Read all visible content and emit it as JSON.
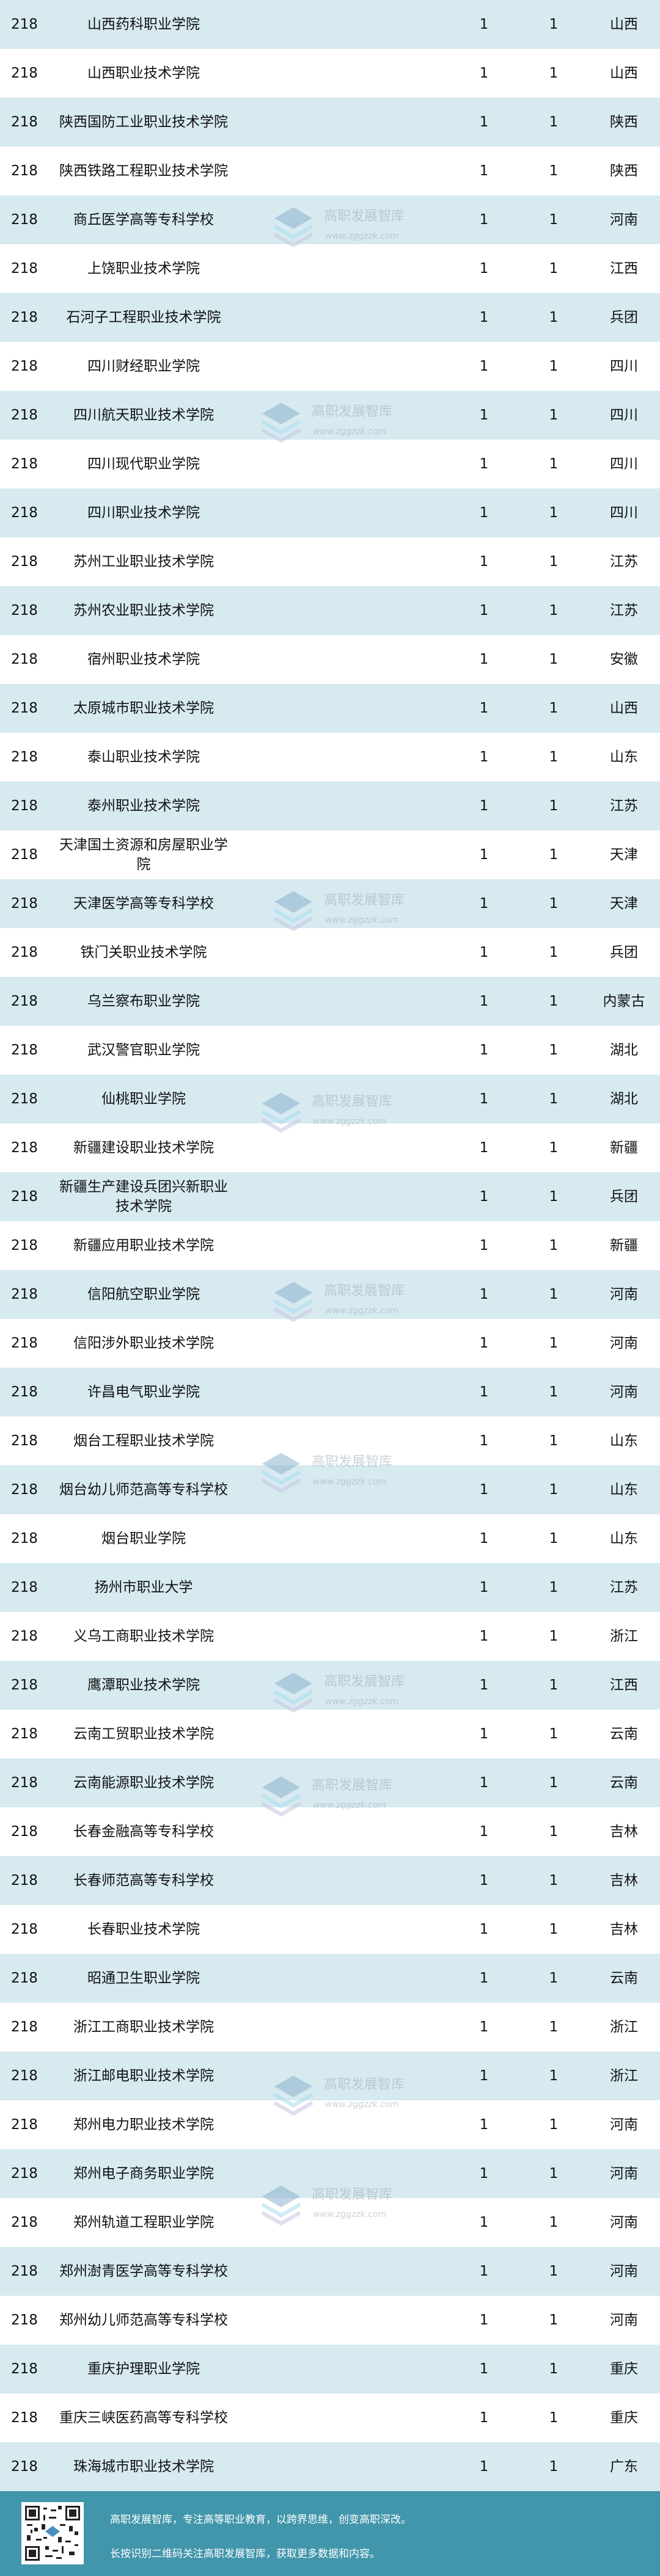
{
  "colors": {
    "row_alt": "#d6eaf0",
    "footer": "#4296ab"
  },
  "rows": [
    {
      "rank": "218",
      "name": "山西药科职业学院",
      "a": "1",
      "b": "1",
      "province": "山西"
    },
    {
      "rank": "218",
      "name": "山西职业技术学院",
      "a": "1",
      "b": "1",
      "province": "山西"
    },
    {
      "rank": "218",
      "name": "陕西国防工业职业技术学院",
      "a": "1",
      "b": "1",
      "province": "陕西"
    },
    {
      "rank": "218",
      "name": "陕西铁路工程职业技术学院",
      "a": "1",
      "b": "1",
      "province": "陕西"
    },
    {
      "rank": "218",
      "name": "商丘医学高等专科学校",
      "a": "1",
      "b": "1",
      "province": "河南"
    },
    {
      "rank": "218",
      "name": "上饶职业技术学院",
      "a": "1",
      "b": "1",
      "province": "江西"
    },
    {
      "rank": "218",
      "name": "石河子工程职业技术学院",
      "a": "1",
      "b": "1",
      "province": "兵团"
    },
    {
      "rank": "218",
      "name": "四川财经职业学院",
      "a": "1",
      "b": "1",
      "province": "四川"
    },
    {
      "rank": "218",
      "name": "四川航天职业技术学院",
      "a": "1",
      "b": "1",
      "province": "四川"
    },
    {
      "rank": "218",
      "name": "四川现代职业学院",
      "a": "1",
      "b": "1",
      "province": "四川"
    },
    {
      "rank": "218",
      "name": "四川职业技术学院",
      "a": "1",
      "b": "1",
      "province": "四川"
    },
    {
      "rank": "218",
      "name": "苏州工业职业技术学院",
      "a": "1",
      "b": "1",
      "province": "江苏"
    },
    {
      "rank": "218",
      "name": "苏州农业职业技术学院",
      "a": "1",
      "b": "1",
      "province": "江苏"
    },
    {
      "rank": "218",
      "name": "宿州职业技术学院",
      "a": "1",
      "b": "1",
      "province": "安徽"
    },
    {
      "rank": "218",
      "name": "太原城市职业技术学院",
      "a": "1",
      "b": "1",
      "province": "山西"
    },
    {
      "rank": "218",
      "name": "泰山职业技术学院",
      "a": "1",
      "b": "1",
      "province": "山东"
    },
    {
      "rank": "218",
      "name": "泰州职业技术学院",
      "a": "1",
      "b": "1",
      "province": "江苏"
    },
    {
      "rank": "218",
      "name": "天津国土资源和房屋职业学院",
      "a": "1",
      "b": "1",
      "province": "天津"
    },
    {
      "rank": "218",
      "name": "天津医学高等专科学校",
      "a": "1",
      "b": "1",
      "province": "天津"
    },
    {
      "rank": "218",
      "name": "铁门关职业技术学院",
      "a": "1",
      "b": "1",
      "province": "兵团"
    },
    {
      "rank": "218",
      "name": "乌兰察布职业学院",
      "a": "1",
      "b": "1",
      "province": "内蒙古"
    },
    {
      "rank": "218",
      "name": "武汉警官职业学院",
      "a": "1",
      "b": "1",
      "province": "湖北"
    },
    {
      "rank": "218",
      "name": "仙桃职业学院",
      "a": "1",
      "b": "1",
      "province": "湖北"
    },
    {
      "rank": "218",
      "name": "新疆建设职业技术学院",
      "a": "1",
      "b": "1",
      "province": "新疆"
    },
    {
      "rank": "218",
      "name": "新疆生产建设兵团兴新职业技术学院",
      "a": "1",
      "b": "1",
      "province": "兵团"
    },
    {
      "rank": "218",
      "name": "新疆应用职业技术学院",
      "a": "1",
      "b": "1",
      "province": "新疆"
    },
    {
      "rank": "218",
      "name": "信阳航空职业学院",
      "a": "1",
      "b": "1",
      "province": "河南"
    },
    {
      "rank": "218",
      "name": "信阳涉外职业技术学院",
      "a": "1",
      "b": "1",
      "province": "河南"
    },
    {
      "rank": "218",
      "name": "许昌电气职业学院",
      "a": "1",
      "b": "1",
      "province": "河南"
    },
    {
      "rank": "218",
      "name": "烟台工程职业技术学院",
      "a": "1",
      "b": "1",
      "province": "山东"
    },
    {
      "rank": "218",
      "name": "烟台幼儿师范高等专科学校",
      "a": "1",
      "b": "1",
      "province": "山东"
    },
    {
      "rank": "218",
      "name": "烟台职业学院",
      "a": "1",
      "b": "1",
      "province": "山东"
    },
    {
      "rank": "218",
      "name": "扬州市职业大学",
      "a": "1",
      "b": "1",
      "province": "江苏"
    },
    {
      "rank": "218",
      "name": "义乌工商职业技术学院",
      "a": "1",
      "b": "1",
      "province": "浙江"
    },
    {
      "rank": "218",
      "name": "鹰潭职业技术学院",
      "a": "1",
      "b": "1",
      "province": "江西"
    },
    {
      "rank": "218",
      "name": "云南工贸职业技术学院",
      "a": "1",
      "b": "1",
      "province": "云南"
    },
    {
      "rank": "218",
      "name": "云南能源职业技术学院",
      "a": "1",
      "b": "1",
      "province": "云南"
    },
    {
      "rank": "218",
      "name": "长春金融高等专科学校",
      "a": "1",
      "b": "1",
      "province": "吉林"
    },
    {
      "rank": "218",
      "name": "长春师范高等专科学校",
      "a": "1",
      "b": "1",
      "province": "吉林"
    },
    {
      "rank": "218",
      "name": "长春职业技术学院",
      "a": "1",
      "b": "1",
      "province": "吉林"
    },
    {
      "rank": "218",
      "name": "昭通卫生职业学院",
      "a": "1",
      "b": "1",
      "province": "云南"
    },
    {
      "rank": "218",
      "name": "浙江工商职业技术学院",
      "a": "1",
      "b": "1",
      "province": "浙江"
    },
    {
      "rank": "218",
      "name": "浙江邮电职业技术学院",
      "a": "1",
      "b": "1",
      "province": "浙江"
    },
    {
      "rank": "218",
      "name": "郑州电力职业技术学院",
      "a": "1",
      "b": "1",
      "province": "河南"
    },
    {
      "rank": "218",
      "name": "郑州电子商务职业学院",
      "a": "1",
      "b": "1",
      "province": "河南"
    },
    {
      "rank": "218",
      "name": "郑州轨道工程职业学院",
      "a": "1",
      "b": "1",
      "province": "河南"
    },
    {
      "rank": "218",
      "name": "郑州澍青医学高等专科学校",
      "a": "1",
      "b": "1",
      "province": "河南"
    },
    {
      "rank": "218",
      "name": "郑州幼儿师范高等专科学校",
      "a": "1",
      "b": "1",
      "province": "河南"
    },
    {
      "rank": "218",
      "name": "重庆护理职业学院",
      "a": "1",
      "b": "1",
      "province": "重庆"
    },
    {
      "rank": "218",
      "name": "重庆三峡医药高等专科学校",
      "a": "1",
      "b": "1",
      "province": "重庆"
    },
    {
      "rank": "218",
      "name": "珠海城市职业技术学院",
      "a": "1",
      "b": "1",
      "province": "广东"
    }
  ],
  "watermark": {
    "text": "高职发展智库",
    "url": "www.zggzzk.com",
    "icon": "stacked-layers-logo-icon"
  },
  "footer": {
    "line1": "高职发展智库，专注高等职业教育，以跨界思维，创变高职深改。",
    "line2": "长按识别二维码关注高职发展智库，获取更多数据和内容。",
    "qr_icon": "qr-code-icon"
  }
}
